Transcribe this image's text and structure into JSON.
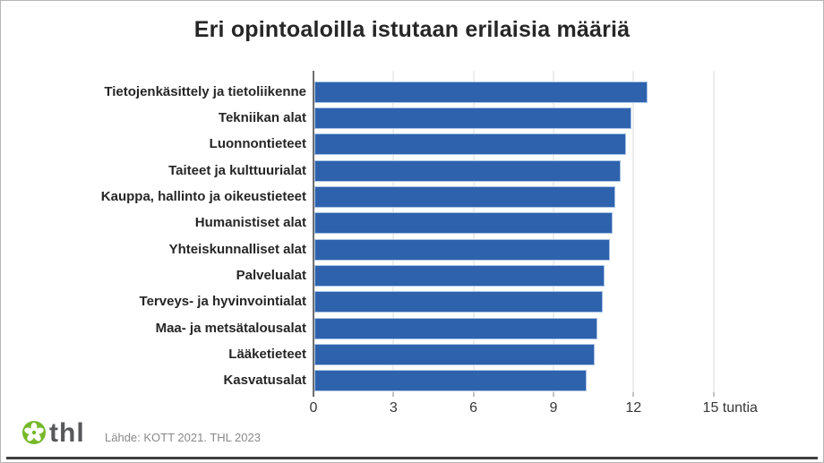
{
  "page": {
    "title": "Eri opintoaloilla istutaan erilaisia määriä",
    "source_note": "Lähde: KOTT 2021. THL 2023",
    "logo_text": "thl",
    "colors": {
      "bar_fill": "#2e62ac",
      "bar_stroke": "#a9c3e6",
      "logo_green": "#76b82a",
      "bottom_rule": "#3f3f3f"
    }
  },
  "chart_data": {
    "type": "bar",
    "orientation": "horizontal",
    "title": "Eri opintoaloilla istutaan erilaisia määriä",
    "categories": [
      "Tietojenkäsittely ja tietoliikenne",
      "Tekniikan alat",
      "Luonnontieteet",
      "Taiteet ja kulttuurialat",
      "Kauppa, hallinto ja oikeustieteet",
      "Humanistiset alat",
      "Yhteiskunnalliset alat",
      "Palvelualat",
      "Terveys- ja hyvinvointialat",
      "Maa- ja metsätalousalat",
      "Lääketieteet",
      "Kasvatusalat"
    ],
    "values": [
      12.5,
      11.9,
      11.7,
      11.5,
      11.3,
      11.2,
      11.1,
      10.9,
      10.8,
      10.6,
      10.5,
      10.2
    ],
    "unit": "tuntia",
    "xlabel": "tuntia",
    "xlim": [
      0,
      15
    ],
    "x_ticks": [
      0,
      3,
      6,
      9,
      12,
      15
    ],
    "x_tick_labels": [
      "0",
      "3",
      "6",
      "9",
      "12",
      "15 tuntia"
    ],
    "grid": true,
    "legend": "none"
  }
}
